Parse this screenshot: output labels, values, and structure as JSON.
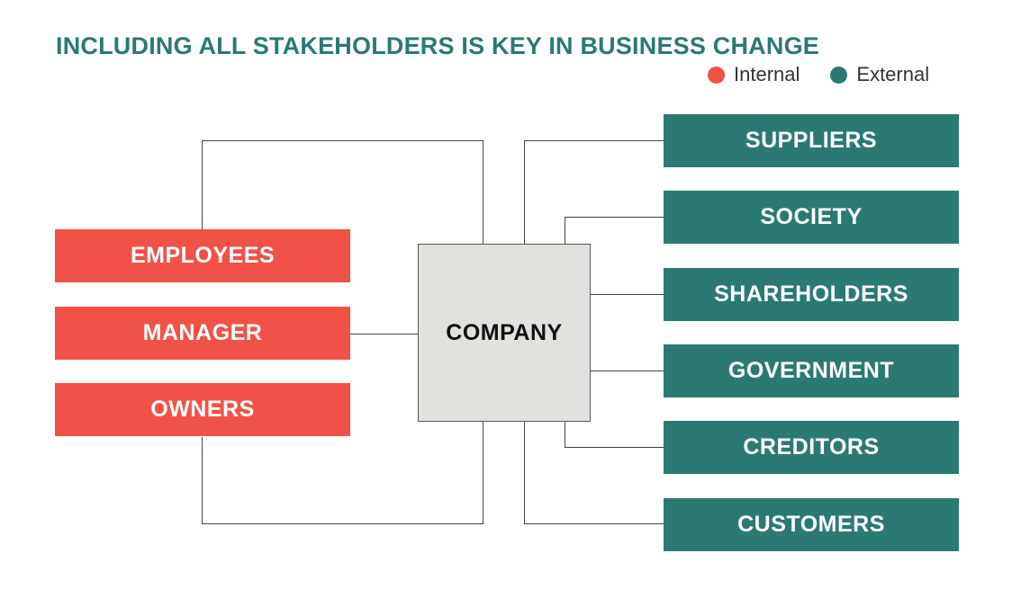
{
  "title": "INCLUDING ALL STAKEHOLDERS IS KEY IN BUSINESS CHANGE",
  "legend": {
    "internal": {
      "label": "Internal",
      "color": "#f05247"
    },
    "external": {
      "label": "External",
      "color": "#2a7a72"
    }
  },
  "center": {
    "label": "COMPANY"
  },
  "internal_stakeholders": [
    {
      "label": "EMPLOYEES"
    },
    {
      "label": "MANAGER"
    },
    {
      "label": "OWNERS"
    }
  ],
  "external_stakeholders": [
    {
      "label": "SUPPLIERS"
    },
    {
      "label": "SOCIETY"
    },
    {
      "label": "SHAREHOLDERS"
    },
    {
      "label": "GOVERNMENT"
    },
    {
      "label": "CREDITORS"
    },
    {
      "label": "CUSTOMERS"
    }
  ]
}
